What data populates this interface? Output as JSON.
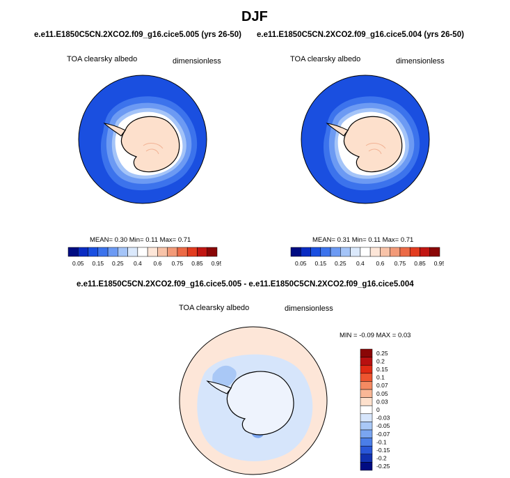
{
  "figure_title": "DJF",
  "panels": [
    {
      "case": "e.e11.E1850C5CN.2XCO2.f09_g16.cice5.005 (yrs 26-50)",
      "variable": "TOA clearsky albedo",
      "units": "dimensionless",
      "stats": "MEAN=  0.30  Min=  0.11  Max=  0.71"
    },
    {
      "case": "e.e11.E1850C5CN.2XCO2.f09_g16.cice5.004 (yrs 26-50)",
      "variable": "TOA clearsky albedo",
      "units": "dimensionless",
      "stats": "MEAN=  0.31  Min=  0.11  Max=  0.71"
    }
  ],
  "top_colorbar": {
    "colors": [
      "#000c82",
      "#0a2cc2",
      "#1a4fe0",
      "#3c73ec",
      "#6c9af3",
      "#a4c4f8",
      "#dbe9fc",
      "#ffffff",
      "#fde6d8",
      "#f8c3a8",
      "#f29a78",
      "#ec6a46",
      "#e23c20",
      "#c11612",
      "#8a0606"
    ],
    "labels": [
      "0.05",
      "0.15",
      "0.25",
      "0.4",
      "0.6",
      "0.75",
      "0.85",
      "0.95"
    ]
  },
  "diff_panel": {
    "title": "e.e11.E1850C5CN.2XCO2.f09_g16.cice5.005 - e.e11.E1850C5CN.2XCO2.f09_g16.cice5.004",
    "variable": "TOA clearsky albedo",
    "units": "dimensionless",
    "stats": "MIN =  -0.09 MAX =  0.03"
  },
  "diff_colorbar": {
    "colors": [
      "#8a0606",
      "#b81010",
      "#e02a14",
      "#ee5530",
      "#f58a62",
      "#f9b796",
      "#fde0cc",
      "#ffffff",
      "#d6e5fb",
      "#a9c8f6",
      "#7aa5f0",
      "#4b7ee8",
      "#2957d8",
      "#1031b0",
      "#000c82"
    ],
    "labels": [
      "0.25",
      "0.2",
      "0.15",
      "0.1",
      "0.07",
      "0.05",
      "0.03",
      "0",
      "-0.03",
      "-0.05",
      "-0.07",
      "-0.1",
      "-0.15",
      "-0.2",
      "-0.25"
    ]
  }
}
